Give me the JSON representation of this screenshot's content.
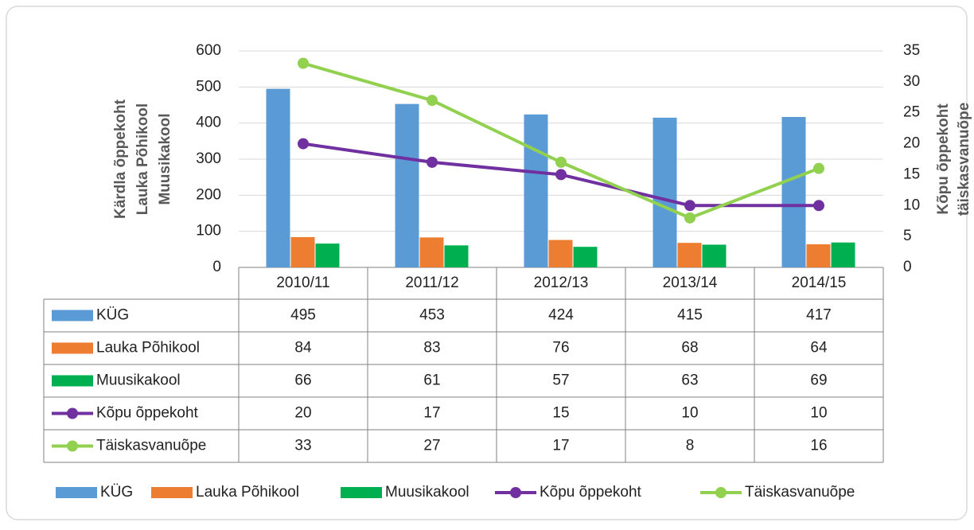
{
  "chart_data": {
    "type": "bar",
    "categories": [
      "2010/11",
      "2011/12",
      "2012/13",
      "2013/14",
      "2014/15"
    ],
    "y_title_lines": [
      "Kärdla õppekoht",
      "Lauka Põhikool",
      "Muusikakool"
    ],
    "y2_title_lines": [
      "Kõpu õppekoht",
      "täiskasvanuõpe"
    ],
    "ylim": [
      0,
      600
    ],
    "yticks": [
      0,
      100,
      200,
      300,
      400,
      500,
      600
    ],
    "y2lim": [
      0,
      35
    ],
    "y2ticks": [
      0,
      5,
      10,
      15,
      20,
      25,
      30,
      35
    ],
    "grid": true,
    "series": [
      {
        "name": "KÜG",
        "type": "bar",
        "color": "#5b9bd5",
        "values": [
          495,
          453,
          424,
          415,
          417
        ]
      },
      {
        "name": "Lauka Põhikool",
        "type": "bar",
        "color": "#ed7d31",
        "values": [
          84,
          83,
          76,
          68,
          64
        ]
      },
      {
        "name": "Muusikakool",
        "type": "bar",
        "color": "#00b050",
        "values": [
          66,
          61,
          57,
          63,
          69
        ]
      },
      {
        "name": "Kõpu õppekoht",
        "type": "line",
        "axis": "y2",
        "color": "#7030a0",
        "values": [
          20,
          17,
          15,
          10,
          10
        ]
      },
      {
        "name": "Täiskasvanuõpe",
        "type": "line",
        "axis": "y2",
        "color": "#92d050",
        "values": [
          33,
          27,
          17,
          8,
          16
        ]
      }
    ]
  }
}
